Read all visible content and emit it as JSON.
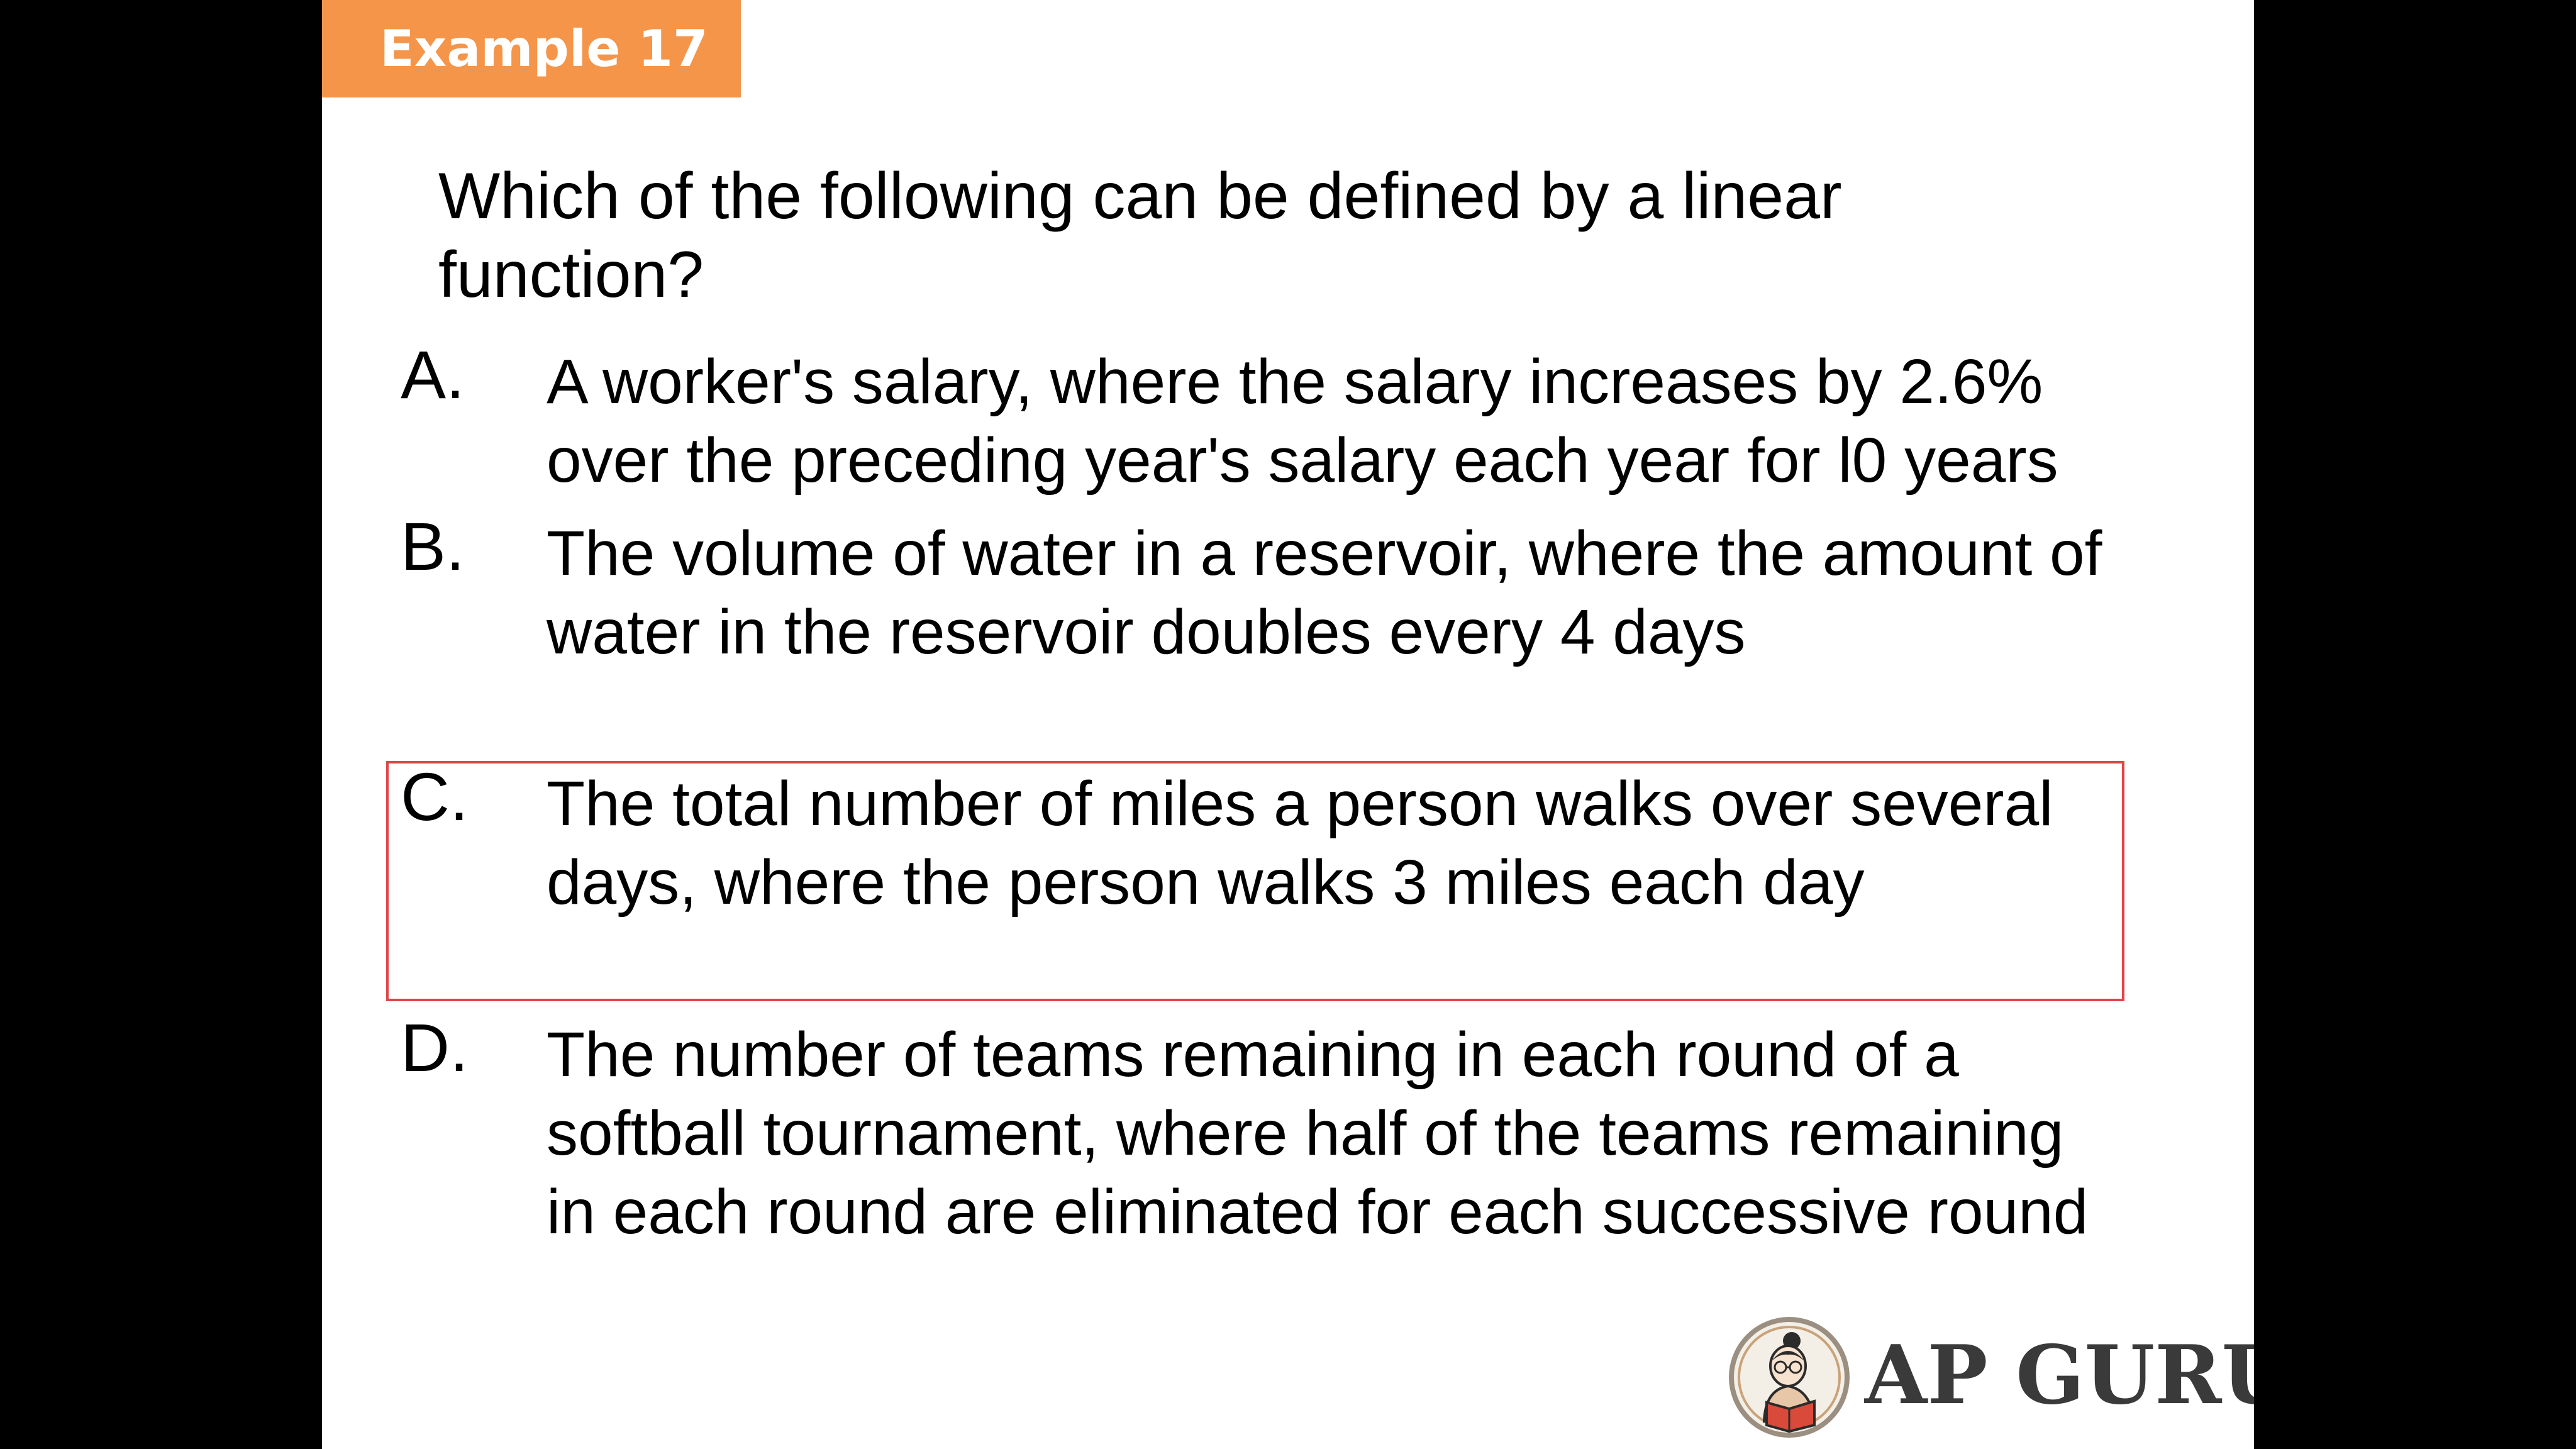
{
  "header": {
    "badge_label": "Example 17"
  },
  "question": {
    "text": "Which of the following can be defined by a linear function?"
  },
  "options": [
    {
      "letter": "A.",
      "text": "A worker's salary, where the salary increases by 2.6% over the preceding year's salary each year for l0 years"
    },
    {
      "letter": "B.",
      "text": "The volume of water in a reservoir, where the amount of water in the reservoir doubles every 4 days"
    },
    {
      "letter": "C.",
      "text": "The total number of miles a person walks over several days, where the person walks 3 miles each day"
    },
    {
      "letter": "D.",
      "text": "The number of teams remaining in each round of a softball tournament, where half of the teams remaining in each round are eliminated for each successive round"
    }
  ],
  "highlighted_option": "C.",
  "logo": {
    "brand": "AP GURU",
    "emblem_icon": "reading-person-emblem-icon"
  },
  "colors": {
    "badge": "#F4954A",
    "highlight_border": "#E0454A",
    "background": "#000000",
    "slide": "#ffffff"
  }
}
